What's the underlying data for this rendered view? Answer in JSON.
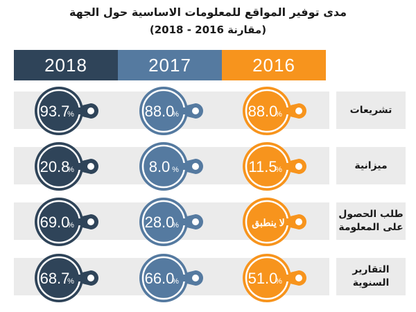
{
  "header": {
    "title": "مدى توفير المواقع للمعلومات الاساسية حول الجهة",
    "subtitle": "(مقارنة 2016 - 2018)"
  },
  "years": [
    {
      "label": "2018",
      "color": "#2f4459"
    },
    {
      "label": "2017",
      "color": "#557aa0"
    },
    {
      "label": "2016",
      "color": "#f7941d"
    }
  ],
  "rows": [
    {
      "label": "تشريعات"
    },
    {
      "label": "ميزانية"
    },
    {
      "label": "طلب الحصول على المعلومة"
    },
    {
      "label": "التقارير السنوية"
    }
  ],
  "percent_sign": "%",
  "chart_data": {
    "type": "table",
    "title": "مدى توفير المواقع للمعلومات الاساسية حول الجهة",
    "subtitle": "(مقارنة 2016 - 2018)",
    "columns": [
      "2018",
      "2017",
      "2016"
    ],
    "categories": [
      "تشريعات",
      "ميزانية",
      "طلب الحصول على المعلومة",
      "التقارير السنوية"
    ],
    "series": [
      {
        "name": "2018",
        "values": [
          "93.7",
          "20.8",
          "69.0",
          "68.7"
        ]
      },
      {
        "name": "2017",
        "values": [
          "88.0",
          "8.0",
          "28.0",
          "66.0"
        ]
      },
      {
        "name": "2016",
        "values": [
          "88.0",
          "11.5",
          "لا ينطبق",
          "51.0"
        ]
      }
    ]
  }
}
